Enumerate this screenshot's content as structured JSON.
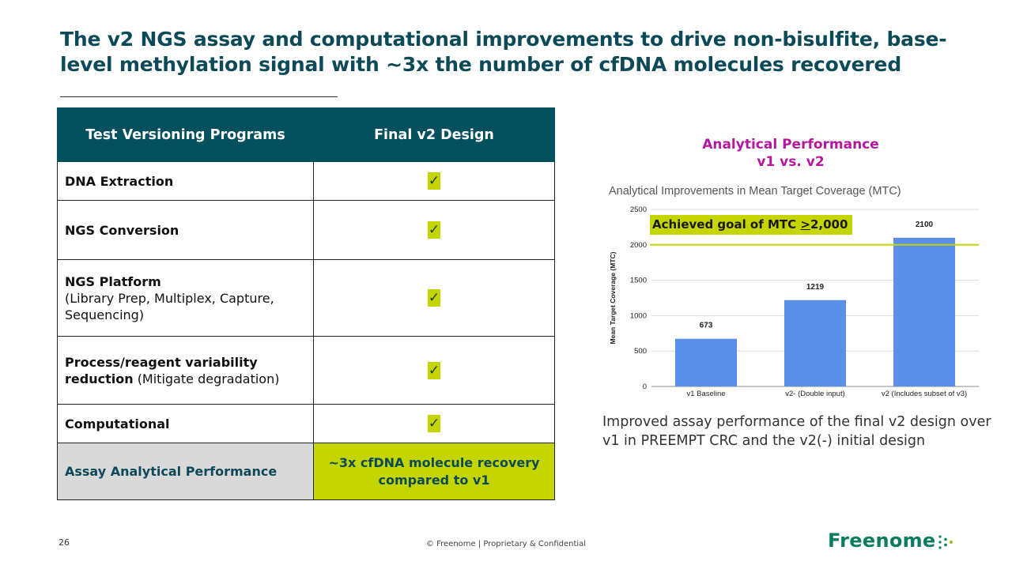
{
  "title": "The v2 NGS assay and computational improvements to drive non-bisulfite, base-level methylation signal with ~3x the number of cfDNA molecules recovered",
  "table": {
    "headers": [
      "Test Versioning Programs",
      "Final v2 Design"
    ],
    "rows": [
      {
        "label": "DNA Extraction",
        "sub": "",
        "value": "✓"
      },
      {
        "label": "NGS Conversion",
        "sub": "",
        "value": "✓"
      },
      {
        "label": "NGS Platform",
        "sub": "(Library Prep, Multiplex, Capture, Sequencing)",
        "value": "✓"
      },
      {
        "label": "Process/reagent variability reduction",
        "sub": "(Mitigate degradation)",
        "value": "✓"
      },
      {
        "label": "Computational",
        "sub": "",
        "value": "✓"
      }
    ],
    "final_row": {
      "label": "Assay Analytical Performance",
      "value": "~3x cfDNA molecule recovery compared to v1"
    }
  },
  "perf_title": {
    "line1": "Analytical Performance",
    "line2": "v1 vs. v2"
  },
  "goal": {
    "prefix": "Achieved goal of MTC ",
    "underlined": ">",
    "suffix": "2,000"
  },
  "caption": "Improved assay performance of the final v2 design over v1 in PREEMPT CRC and the v2(-) initial design",
  "footer": {
    "page_number": "26",
    "text": "© Freenome | Proprietary & Confidential",
    "logo": "Freenome"
  },
  "colors": {
    "teal": "#05505e",
    "lime": "#c4d500",
    "magenta": "#b5179e",
    "bar": "#5a8ee8",
    "logo": "#0a7c5f"
  },
  "chart_data": {
    "type": "bar",
    "title": "Analytical Improvements in Mean Target Coverage (MTC)",
    "categories": [
      "v1 Baseline",
      "v2- (Double input)",
      "v2 (Includes subset of v3)"
    ],
    "values": [
      673,
      1219,
      2100
    ],
    "data_labels": [
      "673",
      "1219",
      "2100"
    ],
    "ylabel": "Mean Target Coverage (MTC)",
    "xlabel": "",
    "ylim": [
      0,
      2500
    ],
    "yticks": [
      0,
      500,
      1000,
      1500,
      2000,
      2500
    ],
    "ytick_labels": [
      "0",
      "500",
      "1000",
      "1500",
      "2000",
      "2500"
    ],
    "reference_line": 2000,
    "grid": true
  }
}
